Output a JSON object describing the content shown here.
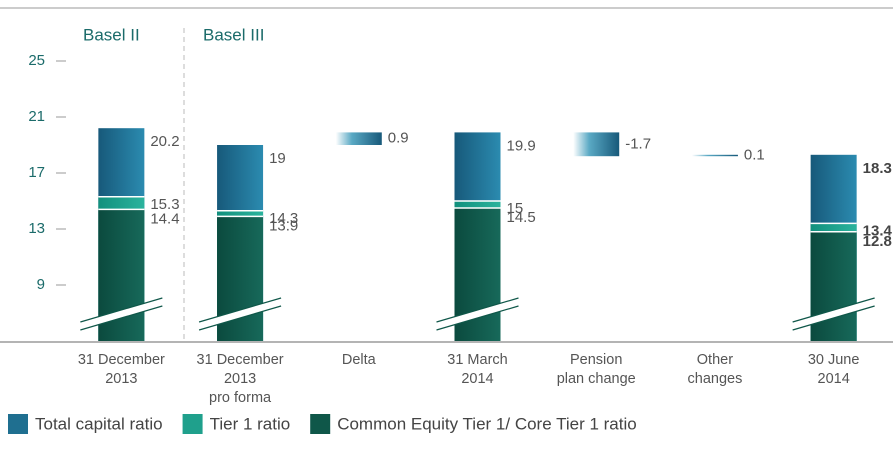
{
  "chart_data": {
    "type": "bar",
    "annotations": [
      "Basel II",
      "Basel III"
    ],
    "categories": [
      "31 December\n2013",
      "31 December\n2013\npro forma",
      "Delta",
      "31 March\n2014",
      "Pension\nplan change",
      "Other\nchanges",
      "30 June\n2014"
    ],
    "series": [
      {
        "name": "Total capital ratio",
        "color": "#1f6f90",
        "values": [
          20.2,
          19.0,
          null,
          19.9,
          null,
          null,
          18.3
        ]
      },
      {
        "name": "Tier 1 ratio",
        "color": "#1fa08c",
        "values": [
          15.3,
          14.3,
          null,
          15.0,
          null,
          null,
          13.4
        ]
      },
      {
        "name": "Common Equity Tier 1/ Core Tier 1 ratio",
        "color": "#0f5749",
        "values": [
          14.4,
          13.9,
          null,
          14.5,
          null,
          null,
          12.8
        ]
      }
    ],
    "changes": [
      null,
      null,
      0.9,
      null,
      -1.7,
      0.1,
      null
    ],
    "emphasis_index": 6,
    "ylim": [
      5,
      25
    ],
    "yticks": [
      9,
      13,
      17,
      21,
      25
    ]
  }
}
